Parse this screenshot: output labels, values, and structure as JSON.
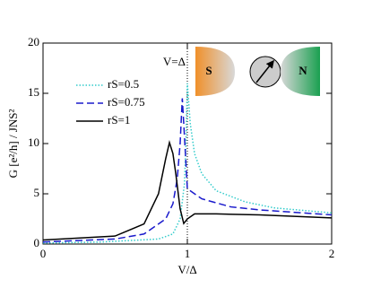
{
  "chart_data": {
    "type": "line",
    "xlabel": "V/Δ",
    "ylabel": "G [e²/h] / JNS²",
    "annotation": "V=Δ",
    "xlim": [
      0,
      2
    ],
    "ylim": [
      0,
      20
    ],
    "xticks": [
      0,
      1,
      2
    ],
    "yticks": [
      0,
      5,
      10,
      15,
      20
    ],
    "vline": 1,
    "series": [
      {
        "name": "rS=0.5",
        "color": "#33cccc",
        "style": "dotted",
        "x": [
          0,
          0.4,
          0.8,
          0.9,
          0.95,
          0.98,
          0.99,
          1.0,
          1.02,
          1.05,
          1.1,
          1.2,
          1.4,
          1.6,
          2.0
        ],
        "values": [
          0.1,
          0.2,
          0.5,
          1,
          2.5,
          6,
          10,
          16,
          12,
          9,
          7,
          5.3,
          4.2,
          3.6,
          3.1
        ]
      },
      {
        "name": "rS=0.75",
        "color": "#1a1acc",
        "style": "dashed",
        "x": [
          0,
          0.5,
          0.7,
          0.85,
          0.9,
          0.93,
          0.95,
          0.965,
          0.975,
          1.0,
          1.1,
          1.3,
          1.5,
          2.0
        ],
        "values": [
          0.2,
          0.5,
          1,
          2.5,
          4,
          6.5,
          10,
          14.5,
          12,
          5.5,
          4.5,
          3.7,
          3.4,
          2.9
        ]
      },
      {
        "name": "rS=1",
        "color": "#000000",
        "style": "solid",
        "x": [
          0,
          0.5,
          0.7,
          0.8,
          0.85,
          0.876,
          0.9,
          0.92,
          0.95,
          0.975,
          1.0,
          1.05,
          1.2,
          1.5,
          2.0
        ],
        "values": [
          0.4,
          0.8,
          2,
          5,
          8.5,
          10.1,
          9,
          7,
          3.5,
          2.05,
          2.5,
          3.0,
          3.0,
          2.9,
          2.6
        ]
      }
    ]
  },
  "inset": {
    "left": "S",
    "right": "N"
  }
}
